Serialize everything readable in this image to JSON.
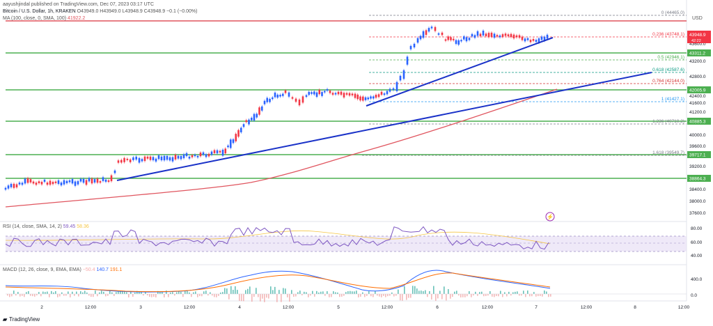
{
  "header": {
    "published": "aayushjindal published on TradingView.com, Dec 07, 2023 03:17 UTC",
    "symbol": "Bitcoin / U.S. Dollar, 1h, KRAKEN",
    "ohlc": "O43949.0 H43949.0 L43948.9 C43948.9 −0.1 (−0.00%)",
    "ma": "MA (100, close, 0, SMA, 100)",
    "ma_value": "41922.2",
    "currency": "USD"
  },
  "price_scale": {
    "current_price": "43948.9",
    "current_time": "42:22",
    "ticks": [
      "43600.0",
      "43200.0",
      "42800.0",
      "42400.0",
      "41600.0",
      "41200.0",
      "40000.0",
      "39600.0",
      "39200.0",
      "38400.0",
      "38000.0",
      "37600.0"
    ],
    "support_badges": [
      "43311.2",
      "42005.9",
      "40885.3",
      "39717.1",
      "38864.3"
    ]
  },
  "fib_levels": [
    {
      "ratio": "0",
      "price": "44465.0",
      "color": "#787b86"
    },
    {
      "ratio": "0.236",
      "price": "43748.1",
      "color": "#f23645"
    },
    {
      "ratio": "0.5",
      "price": "42946.1",
      "color": "#4caf50"
    },
    {
      "ratio": "0.618",
      "price": "42587.6",
      "color": "#089981"
    },
    {
      "ratio": "0.764",
      "price": "42144.0",
      "color": "#d32f2f"
    },
    {
      "ratio": "1",
      "price": "41427.1",
      "color": "#2196f3"
    },
    {
      "ratio": "1.236",
      "price": "40710.2",
      "color": "#787b86"
    },
    {
      "ratio": "1.618",
      "price": "39549.7",
      "color": "#787b86"
    }
  ],
  "rsi": {
    "label": "RSI (14, close, SMA, 14, 2)",
    "value1": "59.45",
    "value2": "58.36",
    "ticks": [
      "80.00",
      "60.00",
      "40.00"
    ]
  },
  "macd": {
    "label": "MACD (12, 26, close, 9, EMA, EMA)",
    "value1": "−50.4",
    "value2": "140.7",
    "value3": "191.1",
    "ticks": [
      "400.0",
      "0.0"
    ]
  },
  "time_axis": [
    "2",
    "12:00",
    "3",
    "12:00",
    "4",
    "12:00",
    "5",
    "12:00",
    "6",
    "12:00",
    "7",
    "12:00",
    "8",
    "12:00"
  ],
  "footer": {
    "brand": "TradingView"
  },
  "colors": {
    "candle_up": "#2962ff",
    "candle_down": "#f23645",
    "trendline": "#1a32c8",
    "ma": "#e0555f",
    "support": "#4caf50",
    "rsi": "#7e57c2",
    "rsi_band": "#e8e0f5",
    "macd": "#2962ff",
    "signal": "#ff6d00"
  }
}
